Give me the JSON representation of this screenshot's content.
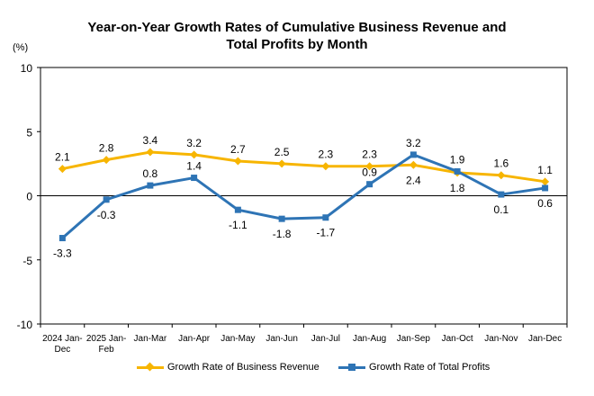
{
  "chart_data": {
    "type": "line",
    "title": "Year-on-Year Growth Rates of Cumulative Business Revenue and Total Profits by Month",
    "title_lines": [
      "Year-on-Year Growth Rates of Cumulative Business Revenue and",
      "Total Profits by Month"
    ],
    "ylabel": "(%)",
    "ylim": [
      -10,
      10
    ],
    "yticks": [
      "10",
      "5",
      "0",
      "-5",
      "-10"
    ],
    "categories": [
      {
        "line1": "2024 Jan-",
        "line2": "Dec"
      },
      {
        "line1": "2025 Jan-",
        "line2": "Feb"
      },
      {
        "line1": "Jan-Mar",
        "line2": ""
      },
      {
        "line1": "Jan-Apr",
        "line2": ""
      },
      {
        "line1": "Jan-May",
        "line2": ""
      },
      {
        "line1": "Jan-Jun",
        "line2": ""
      },
      {
        "line1": "Jan-Jul",
        "line2": ""
      },
      {
        "line1": "Jan-Aug",
        "line2": ""
      },
      {
        "line1": "Jan-Sep",
        "line2": ""
      },
      {
        "line1": "Jan-Oct",
        "line2": ""
      },
      {
        "line1": "Jan-Nov",
        "line2": ""
      },
      {
        "line1": "Jan-Dec",
        "line2": ""
      }
    ],
    "series": [
      {
        "name": "Growth Rate of Business Revenue",
        "color": "#F7B500",
        "marker": "diamond",
        "values": [
          2.1,
          2.8,
          3.4,
          3.2,
          2.7,
          2.5,
          2.3,
          2.3,
          2.4,
          1.8,
          1.6,
          1.1
        ],
        "labels": [
          "2.1",
          "2.8",
          "3.4",
          "3.2",
          "2.7",
          "2.5",
          "2.3",
          "2.3",
          "2.4",
          "1.8",
          "1.6",
          "1.1"
        ],
        "label_pos": [
          "above",
          "above",
          "above",
          "above",
          "above",
          "above",
          "above",
          "above",
          "below",
          "below",
          "above",
          "above"
        ]
      },
      {
        "name": "Growth Rate of Total Profits",
        "color": "#2E74B5",
        "marker": "square",
        "values": [
          -3.3,
          -0.3,
          0.8,
          1.4,
          -1.1,
          -1.8,
          -1.7,
          0.9,
          3.2,
          1.9,
          0.1,
          0.6
        ],
        "labels": [
          "-3.3",
          "-0.3",
          "0.8",
          "1.4",
          "-1.1",
          "-1.8",
          "-1.7",
          "0.9",
          "3.2",
          "1.9",
          "0.1",
          "0.6"
        ],
        "label_pos": [
          "below",
          "below",
          "above",
          "above",
          "below",
          "below",
          "below",
          "above",
          "above",
          "above",
          "below",
          "below"
        ]
      }
    ]
  }
}
